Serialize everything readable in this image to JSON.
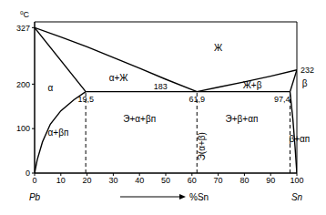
{
  "chart_data": {
    "type": "line",
    "x_label": "%Sn",
    "y_label": "⁰C",
    "components": [
      "Pb",
      "Sn"
    ],
    "xlim": [
      0,
      100
    ],
    "xticks": [
      0,
      10,
      20,
      30,
      40,
      50,
      60,
      70,
      80,
      90,
      100
    ],
    "ylim": [
      0,
      340
    ],
    "yticks": [
      0,
      100,
      200,
      327
    ],
    "grid": false,
    "lines": [
      {
        "x": [
          0,
          10,
          20,
          30,
          40,
          50,
          61.9
        ],
        "y": [
          327,
          306,
          284,
          260,
          236,
          211,
          183
        ],
        "color": "#000000",
        "line_style": "solid"
      },
      {
        "x": [
          61.9,
          70,
          80,
          90,
          100
        ],
        "y": [
          183,
          193,
          205,
          218,
          232
        ],
        "color": "#000000",
        "line_style": "solid"
      },
      {
        "x": [
          0,
          19.5
        ],
        "y": [
          327,
          183
        ],
        "color": "#000000",
        "line_style": "solid"
      },
      {
        "x": [
          97.4,
          100
        ],
        "y": [
          183,
          232
        ],
        "color": "#000000",
        "line_style": "solid"
      },
      {
        "x": [
          19.5,
          97.4
        ],
        "y": [
          183,
          183
        ],
        "color": "#000000",
        "line_style": "solid"
      },
      {
        "x": [
          0,
          1,
          3,
          6,
          10,
          15,
          19.5
        ],
        "y": [
          0,
          30,
          70,
          110,
          140,
          165,
          183
        ],
        "color": "#000000",
        "line_style": "solid"
      },
      {
        "x": [
          97.4,
          98.5,
          99.3,
          100
        ],
        "y": [
          183,
          120,
          60,
          0
        ],
        "color": "#000000",
        "line_style": "solid"
      },
      {
        "x": [
          19.5,
          19.5
        ],
        "y": [
          0,
          183
        ],
        "color": "#000000",
        "line_style": "dashed"
      },
      {
        "x": [
          61.9,
          61.9
        ],
        "y": [
          0,
          183
        ],
        "color": "#000000",
        "line_style": "dashed"
      },
      {
        "x": [
          97.4,
          97.4
        ],
        "y": [
          0,
          183
        ],
        "color": "#000000",
        "line_style": "dashed"
      }
    ],
    "points": [
      {
        "x": 19.5,
        "y": 183,
        "label": "19,5"
      },
      {
        "x": 61.9,
        "y": 183,
        "label": "61,9"
      },
      {
        "x": 97.4,
        "y": 183,
        "label": "97,4"
      },
      {
        "x": 100,
        "y": 232,
        "label": "232"
      }
    ],
    "annotations": [
      {
        "text": "Ж",
        "x": 70,
        "y": 280
      },
      {
        "text": "α+Ж",
        "x": 32,
        "y": 212
      },
      {
        "text": "α",
        "x": 6,
        "y": 190
      },
      {
        "text": "183",
        "x": 48,
        "y": 183
      },
      {
        "text": "Ж+β",
        "x": 83,
        "y": 197
      },
      {
        "text": "β",
        "x": 103,
        "y": 200
      },
      {
        "text": "α+βп",
        "x": 9,
        "y": 90
      },
      {
        "text": "Э+α+βп",
        "x": 40,
        "y": 120
      },
      {
        "text": "Э(α+β)",
        "x": 64,
        "y": 60
      },
      {
        "text": "Э+β+αп",
        "x": 79,
        "y": 120
      },
      {
        "text": "β+αп",
        "x": 101,
        "y": 75
      }
    ]
  }
}
